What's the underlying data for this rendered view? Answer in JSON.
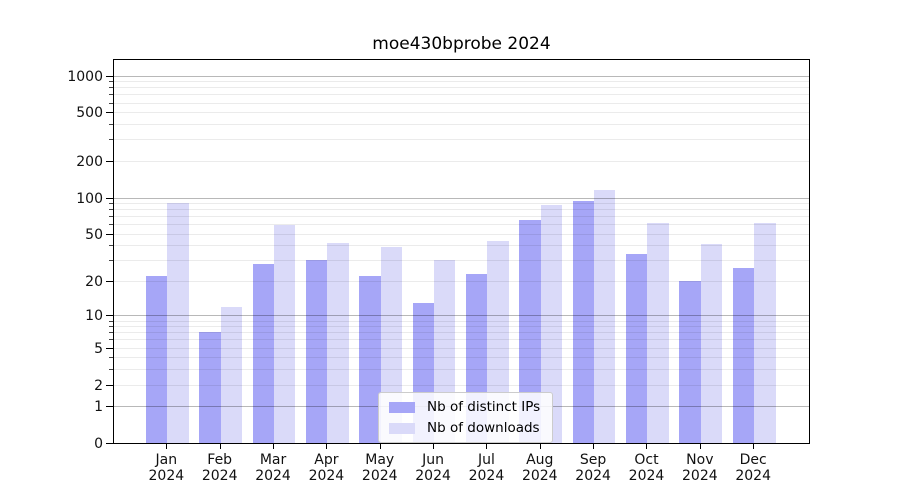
{
  "title": "moe430bprobe 2024",
  "chart_data": {
    "type": "bar",
    "title": "moe430bprobe 2024",
    "xlabel": "",
    "ylabel": "",
    "yscale": "log1p",
    "ylim": [
      0,
      1390
    ],
    "yticks": [
      0,
      1,
      2,
      5,
      10,
      20,
      50,
      100,
      200,
      500,
      1000
    ],
    "grid": true,
    "legend_position": "lower center",
    "categories": [
      "Jan 2024",
      "Feb 2024",
      "Mar 2024",
      "Apr 2024",
      "May 2024",
      "Jun 2024",
      "Jul 2024",
      "Aug 2024",
      "Sep 2024",
      "Oct 2024",
      "Nov 2024",
      "Dec 2024"
    ],
    "series": [
      {
        "name": "Nb of distinct IPs",
        "color": "#a6a6f7",
        "values": [
          22,
          7,
          28,
          30,
          22,
          13,
          23,
          65,
          93,
          34,
          20,
          26
        ]
      },
      {
        "name": "Nb of downloads",
        "color": "#dadaf9",
        "values": [
          90,
          12,
          59,
          42,
          39,
          30,
          44,
          86,
          115,
          61,
          41,
          61
        ]
      }
    ]
  },
  "legend": {
    "items": [
      {
        "label": "Nb of distinct IPs"
      },
      {
        "label": "Nb of downloads"
      }
    ]
  }
}
